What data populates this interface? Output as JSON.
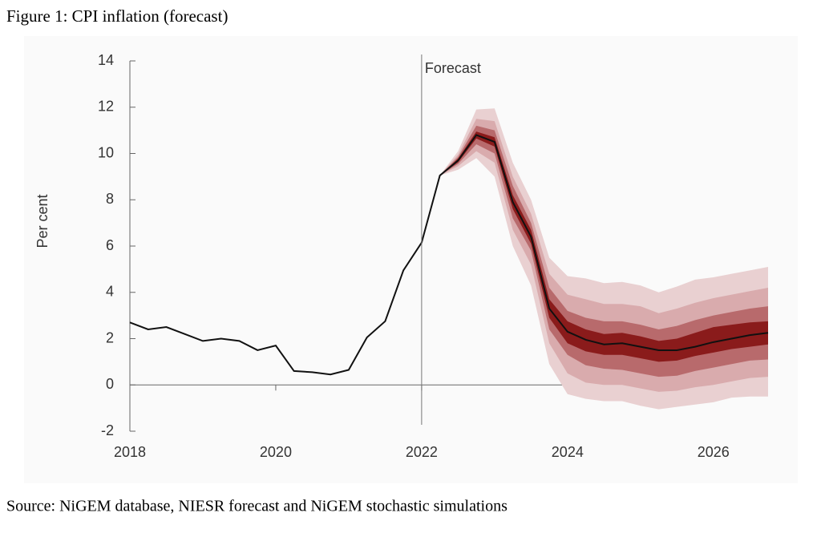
{
  "chart_data": {
    "type": "fan",
    "title": "Figure 1: CPI inflation (forecast)",
    "source": "Source: NiGEM database, NIESR forecast and NiGEM stochastic simulations",
    "y_label": "Per cent",
    "x": [
      2018,
      2018.25,
      2018.5,
      2018.75,
      2019,
      2019.25,
      2019.5,
      2019.75,
      2020,
      2020.25,
      2020.5,
      2020.75,
      2021,
      2021.25,
      2021.5,
      2021.75,
      2022,
      2022.25,
      2022.5,
      2022.75,
      2023,
      2023.25,
      2023.5,
      2023.75,
      2024,
      2024.25,
      2024.5,
      2024.75,
      2025,
      2025.25,
      2025.5,
      2025.75,
      2026,
      2026.25,
      2026.5,
      2026.75
    ],
    "values": [
      2.7,
      2.4,
      2.5,
      2.2,
      1.9,
      2.0,
      1.9,
      1.5,
      1.7,
      0.6,
      0.55,
      0.45,
      0.65,
      2.05,
      2.75,
      4.95,
      6.15,
      9.05,
      9.7,
      10.8,
      10.5,
      7.9,
      6.4,
      3.3,
      2.3,
      1.95,
      1.75,
      1.8,
      1.65,
      1.5,
      1.5,
      1.65,
      1.85,
      2.0,
      2.15,
      2.25
    ],
    "color": "#111111",
    "fan_x": [
      2022.25,
      2022.5,
      2022.75,
      2023,
      2023.25,
      2023.5,
      2023.75,
      2024,
      2024.25,
      2024.5,
      2024.75,
      2025,
      2025.25,
      2025.5,
      2025.75,
      2026,
      2026.25,
      2026.5,
      2026.75
    ],
    "bands": [
      {
        "color": "#e9d0d1",
        "upper": [
          9.05,
          10.1,
          11.9,
          11.95,
          9.6,
          8.0,
          5.5,
          4.7,
          4.6,
          4.4,
          4.45,
          4.3,
          4.0,
          4.25,
          4.55,
          4.65,
          4.8,
          4.95,
          5.1
        ],
        "lower": [
          9.05,
          9.3,
          9.8,
          9.0,
          6.0,
          4.3,
          0.9,
          -0.4,
          -0.6,
          -0.7,
          -0.7,
          -0.9,
          -1.05,
          -0.95,
          -0.85,
          -0.75,
          -0.55,
          -0.5,
          -0.5
        ]
      },
      {
        "color": "#d9abad",
        "upper": [
          9.05,
          9.95,
          11.5,
          11.4,
          9.0,
          7.4,
          4.8,
          3.9,
          3.7,
          3.5,
          3.5,
          3.4,
          3.1,
          3.3,
          3.55,
          3.75,
          3.9,
          4.05,
          4.2
        ],
        "lower": [
          9.05,
          9.45,
          10.1,
          9.6,
          6.7,
          5.2,
          1.8,
          0.5,
          0.1,
          0.0,
          0.0,
          -0.15,
          -0.3,
          -0.25,
          -0.1,
          0.0,
          0.15,
          0.3,
          0.35
        ]
      },
      {
        "color": "#b86a6c",
        "upper": [
          9.05,
          9.85,
          11.2,
          11.0,
          8.6,
          7.0,
          4.2,
          3.2,
          2.9,
          2.75,
          2.75,
          2.6,
          2.4,
          2.55,
          2.8,
          3.0,
          3.15,
          3.3,
          3.4
        ],
        "lower": [
          9.05,
          9.55,
          10.4,
          10.0,
          7.2,
          5.8,
          2.4,
          1.3,
          0.85,
          0.7,
          0.65,
          0.5,
          0.35,
          0.4,
          0.6,
          0.75,
          0.9,
          1.05,
          1.1
        ]
      },
      {
        "color": "#8a1b1b",
        "upper": [
          9.05,
          9.78,
          10.95,
          10.7,
          8.2,
          6.7,
          3.7,
          2.75,
          2.4,
          2.2,
          2.25,
          2.1,
          1.9,
          2.0,
          2.25,
          2.5,
          2.6,
          2.7,
          2.75
        ],
        "lower": [
          9.05,
          9.62,
          10.65,
          10.3,
          7.6,
          6.1,
          2.9,
          1.8,
          1.45,
          1.3,
          1.3,
          1.15,
          1.0,
          1.05,
          1.25,
          1.4,
          1.55,
          1.65,
          1.75
        ]
      }
    ],
    "annotations": [
      {
        "x": 2022,
        "text": "Forecast"
      }
    ],
    "xlim": [
      2018,
      2026.75
    ],
    "xticks": [
      2018,
      2020,
      2022,
      2024,
      2026
    ],
    "ylim": [
      -2,
      14
    ],
    "yticks": [
      -2,
      0,
      2,
      4,
      6,
      8,
      10,
      12,
      14
    ]
  }
}
